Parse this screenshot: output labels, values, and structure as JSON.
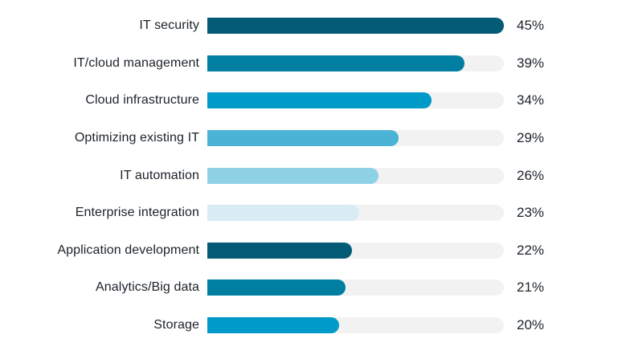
{
  "chart_data": {
    "type": "bar",
    "orientation": "horizontal",
    "title": "",
    "xlabel": "",
    "ylabel": "",
    "categories": [
      "IT security",
      "IT/cloud management",
      "Cloud infrastructure",
      "Optimizing existing IT",
      "IT automation",
      "Enterprise integration",
      "Application development",
      "Analytics/Big data",
      "Storage"
    ],
    "values": [
      45,
      39,
      34,
      29,
      26,
      23,
      22,
      21,
      20
    ],
    "value_labels": [
      "45%",
      "39%",
      "34%",
      "29%",
      "26%",
      "23%",
      "22%",
      "21%",
      "20%"
    ],
    "bar_colors": [
      "#045b75",
      "#007fa3",
      "#009ac8",
      "#4bb3d4",
      "#8ed1e4",
      "#d9ecf5",
      "#045b75",
      "#007fa3",
      "#009ac8"
    ],
    "track_color": "#f2f2f2",
    "xlim": [
      0,
      45
    ],
    "grid": false,
    "legend": "none",
    "data_label_position": "right-of-track"
  }
}
